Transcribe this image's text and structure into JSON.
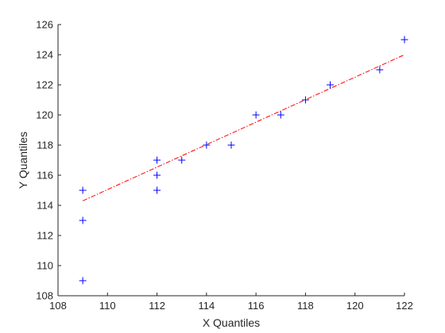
{
  "chart_data": {
    "type": "scatter",
    "title": "",
    "xlabel": "X Quantiles",
    "ylabel": "Y Quantiles",
    "xlim": [
      108,
      122
    ],
    "ylim": [
      108,
      126
    ],
    "xticks": [
      "108",
      "110",
      "112",
      "114",
      "116",
      "118",
      "120",
      "122"
    ],
    "yticks": [
      "108",
      "110",
      "112",
      "114",
      "116",
      "118",
      "120",
      "122",
      "124",
      "126"
    ],
    "grid": false,
    "marker": "+",
    "marker_color": "#0000ff",
    "line_color": "#ff0000",
    "points": [
      {
        "x": 109,
        "y": 109
      },
      {
        "x": 109,
        "y": 113
      },
      {
        "x": 109,
        "y": 115
      },
      {
        "x": 112,
        "y": 115
      },
      {
        "x": 112,
        "y": 116
      },
      {
        "x": 112,
        "y": 117
      },
      {
        "x": 113,
        "y": 117
      },
      {
        "x": 114,
        "y": 118
      },
      {
        "x": 115,
        "y": 118
      },
      {
        "x": 116,
        "y": 120
      },
      {
        "x": 117,
        "y": 120
      },
      {
        "x": 118,
        "y": 121
      },
      {
        "x": 119,
        "y": 122
      },
      {
        "x": 121,
        "y": 123
      },
      {
        "x": 122,
        "y": 125
      }
    ],
    "reference_line": {
      "x": [
        109,
        122
      ],
      "y": [
        114.3,
        124.0
      ],
      "style": "dash-dot"
    }
  }
}
